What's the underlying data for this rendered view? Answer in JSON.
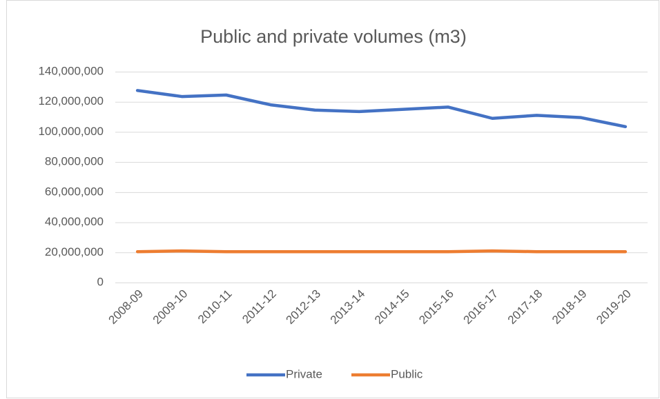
{
  "chart_data": {
    "type": "line",
    "title": "Public and private volumes (m3)",
    "categories": [
      "2008-09",
      "2009-10",
      "2010-11",
      "2011-12",
      "2012-13",
      "2013-14",
      "2014-15",
      "2015-16",
      "2016-17",
      "2017-18",
      "2018-19",
      "2019-20"
    ],
    "series": [
      {
        "name": "Private",
        "color": "#4472c4",
        "values": [
          127500000,
          123500000,
          124500000,
          118000000,
          114500000,
          113500000,
          115000000,
          116500000,
          109000000,
          111000000,
          109500000,
          103500000
        ]
      },
      {
        "name": "Public",
        "color": "#ed7d31",
        "values": [
          20500000,
          21000000,
          20500000,
          20500000,
          20500000,
          20500000,
          20500000,
          20500000,
          21000000,
          20500000,
          20500000,
          20500000
        ]
      }
    ],
    "ylim": [
      0,
      140000000
    ],
    "yticks": [
      0,
      {
        "value": 20000000,
        "label": "20,000,000"
      },
      {
        "value": 40000000,
        "label": "40,000,000"
      },
      {
        "value": 60000000,
        "label": "60,000,000"
      },
      {
        "value": 80000000,
        "label": "80,000,000"
      },
      {
        "value": 100000000,
        "label": "100,000,000"
      },
      {
        "value": 120000000,
        "label": "120,000,000"
      },
      {
        "value": 140000000,
        "label": "140,000,000"
      }
    ],
    "grid": true,
    "legend": "bottom"
  }
}
